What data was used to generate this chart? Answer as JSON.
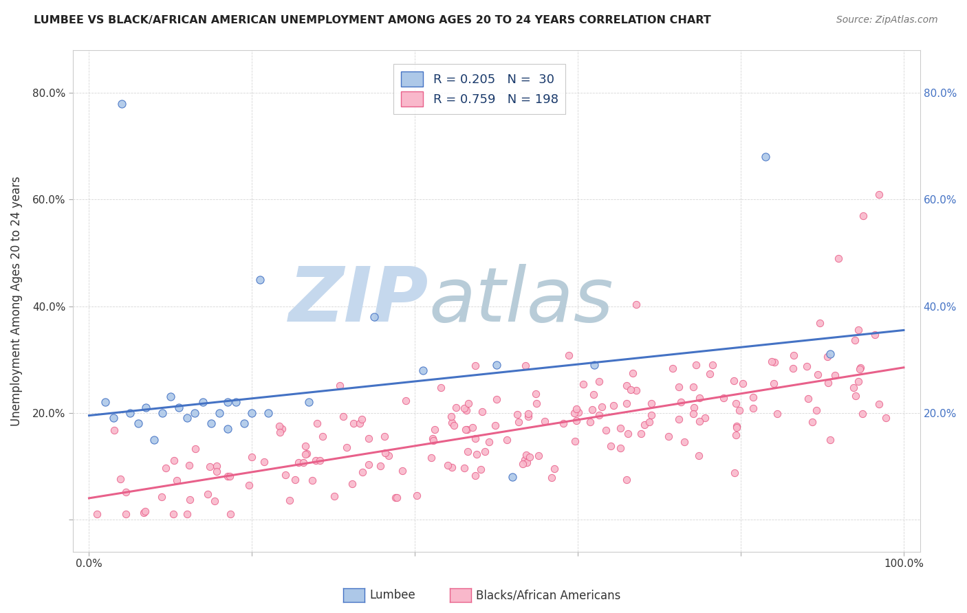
{
  "title": "LUMBEE VS BLACK/AFRICAN AMERICAN UNEMPLOYMENT AMONG AGES 20 TO 24 YEARS CORRELATION CHART",
  "source": "Source: ZipAtlas.com",
  "ylabel": "Unemployment Among Ages 20 to 24 years",
  "xlim": [
    -0.02,
    1.02
  ],
  "ylim": [
    -0.06,
    0.88
  ],
  "xticks": [
    0.0,
    0.2,
    0.4,
    0.6,
    0.8,
    1.0
  ],
  "xticklabels": [
    "0.0%",
    "",
    "",
    "",
    "",
    "100.0%"
  ],
  "yticks": [
    0.0,
    0.2,
    0.4,
    0.6,
    0.8
  ],
  "yticklabels_left": [
    "",
    "20.0%",
    "40.0%",
    "60.0%",
    "80.0%"
  ],
  "yticklabels_right": [
    "",
    "20.0%",
    "40.0%",
    "60.0%",
    "80.0%"
  ],
  "lumbee_color": "#adc8e8",
  "lumbee_edge_color": "#4472c4",
  "pink_color": "#f9b8cb",
  "pink_edge_color": "#e8608a",
  "pink_line_color": "#e8608a",
  "blue_line_color": "#4472c4",
  "watermark_zip_color": "#c5d8ed",
  "watermark_atlas_color": "#c8d8e0",
  "legend_label_1": "Lumbee",
  "legend_label_2": "Blacks/African Americans",
  "lumbee_R": 0.205,
  "lumbee_N": 30,
  "pink_R": 0.759,
  "pink_N": 198,
  "blue_line_start_y": 0.195,
  "blue_line_end_y": 0.355,
  "pink_line_start_y": 0.04,
  "pink_line_end_y": 0.285
}
